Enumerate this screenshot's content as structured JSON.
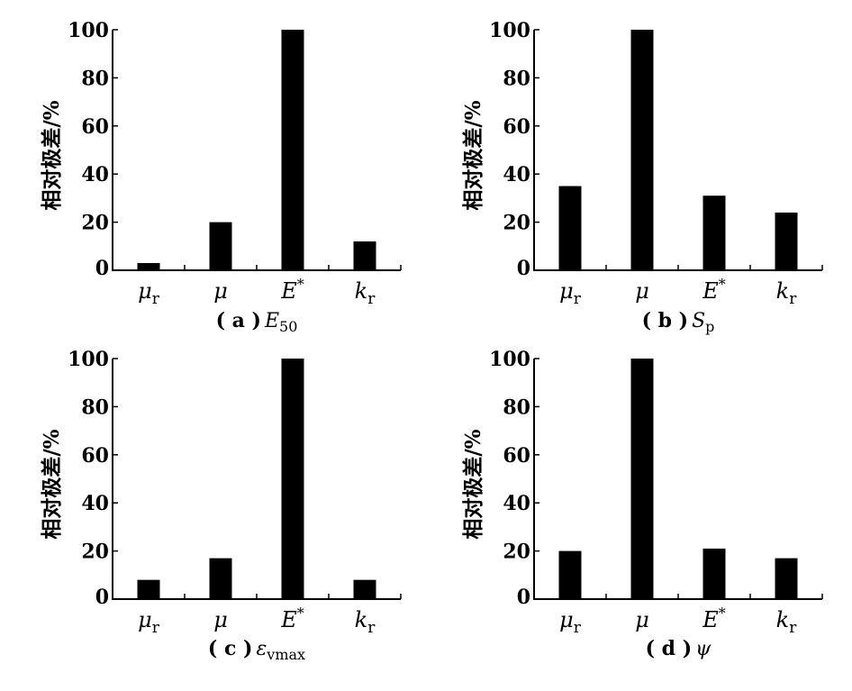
{
  "chart_data": [
    {
      "type": "bar",
      "panel_label": "(a)",
      "subtitle": "E50",
      "categories": [
        "μr",
        "μ",
        "E*",
        "kr"
      ],
      "values": [
        3,
        20,
        100,
        12
      ],
      "ylabel": "相对极差/%",
      "ylim": [
        0,
        100
      ],
      "yticks": [
        0,
        20,
        40,
        60,
        80,
        100
      ],
      "grid": false,
      "bar_color": "#000000"
    },
    {
      "type": "bar",
      "panel_label": "(b)",
      "subtitle": "Sp",
      "categories": [
        "μr",
        "μ",
        "E*",
        "kr"
      ],
      "values": [
        35,
        100,
        31,
        24
      ],
      "ylabel": "相对极差/%",
      "ylim": [
        0,
        100
      ],
      "yticks": [
        0,
        20,
        40,
        60,
        80,
        100
      ],
      "grid": false,
      "bar_color": "#000000"
    },
    {
      "type": "bar",
      "panel_label": "(c)",
      "subtitle": "εvmax",
      "categories": [
        "μr",
        "μ",
        "E*",
        "kr"
      ],
      "values": [
        8,
        17,
        100,
        8
      ],
      "ylabel": "相对极差/%",
      "ylim": [
        0,
        100
      ],
      "yticks": [
        0,
        20,
        40,
        60,
        80,
        100
      ],
      "grid": false,
      "bar_color": "#000000"
    },
    {
      "type": "bar",
      "panel_label": "(d)",
      "subtitle": "ψ",
      "categories": [
        "μr",
        "μ",
        "E*",
        "kr"
      ],
      "values": [
        20,
        100,
        21,
        17
      ],
      "ylabel": "相对极差/%",
      "ylim": [
        0,
        100
      ],
      "yticks": [
        0,
        20,
        40,
        60,
        80,
        100
      ],
      "grid": false,
      "bar_color": "#000000"
    }
  ]
}
